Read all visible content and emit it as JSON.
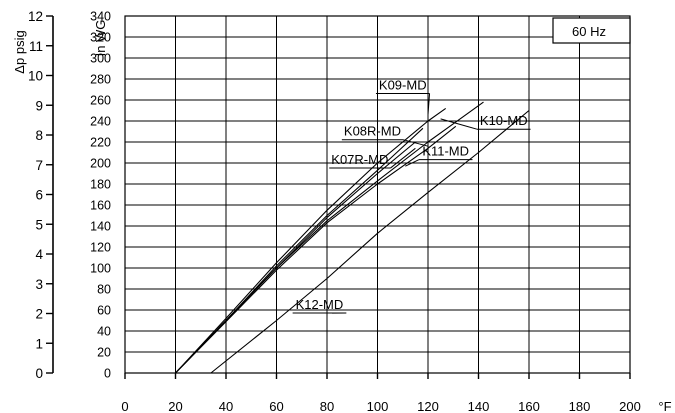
{
  "chart_data": {
    "type": "line",
    "badge": "60 Hz",
    "x_unit": "°F",
    "xlim": [
      0,
      200
    ],
    "x_ticks": [
      0,
      20,
      40,
      60,
      80,
      100,
      120,
      140,
      160,
      180,
      200
    ],
    "left_axis": {
      "label": "Δp psig",
      "range": [
        0,
        12
      ],
      "ticks": [
        0,
        1,
        2,
        3,
        4,
        5,
        6,
        7,
        8,
        9,
        10,
        11,
        12
      ]
    },
    "right_axis": {
      "label": "In WG",
      "range": [
        0,
        340
      ],
      "ticks": [
        0,
        20,
        40,
        60,
        80,
        100,
        120,
        140,
        160,
        180,
        200,
        220,
        240,
        260,
        280,
        300,
        320,
        340
      ]
    },
    "grid": true,
    "series": [
      {
        "name": "K09-MD",
        "points": [
          [
            20,
            0
          ],
          [
            40,
            52
          ],
          [
            60,
            105
          ],
          [
            80,
            155
          ],
          [
            100,
            200
          ],
          [
            120,
            240
          ],
          [
            127,
            252
          ]
        ]
      },
      {
        "name": "K08R-MD",
        "points": [
          [
            20,
            0
          ],
          [
            40,
            50
          ],
          [
            60,
            102
          ],
          [
            80,
            150
          ],
          [
            100,
            193
          ],
          [
            118,
            233
          ]
        ]
      },
      {
        "name": "K07R-MD",
        "points": [
          [
            20,
            0
          ],
          [
            40,
            50
          ],
          [
            60,
            100
          ],
          [
            80,
            148
          ],
          [
            100,
            190
          ],
          [
            115,
            220
          ]
        ]
      },
      {
        "name": "K10-MD",
        "points": [
          [
            20,
            0
          ],
          [
            40,
            50
          ],
          [
            60,
            100
          ],
          [
            80,
            145
          ],
          [
            100,
            183
          ],
          [
            120,
            220
          ],
          [
            142,
            258
          ]
        ]
      },
      {
        "name": "K11-MD",
        "points": [
          [
            20,
            0
          ],
          [
            40,
            49
          ],
          [
            60,
            98
          ],
          [
            80,
            143
          ],
          [
            100,
            180
          ],
          [
            120,
            214
          ],
          [
            131,
            235
          ]
        ]
      },
      {
        "name": "K12-MD",
        "points": [
          [
            34,
            0
          ],
          [
            60,
            50
          ],
          [
            80,
            90
          ],
          [
            100,
            133
          ],
          [
            120,
            172
          ],
          [
            140,
            210
          ],
          [
            160,
            250
          ]
        ]
      }
    ],
    "labels": [
      {
        "series": "K09-MD",
        "text": "K09-MD",
        "x": 110,
        "y": 270,
        "lead_to": [
          120,
          246
        ]
      },
      {
        "series": "K08R-MD",
        "text": "K08R-MD",
        "x": 98,
        "y": 226,
        "lead_to": [
          120,
          216
        ]
      },
      {
        "series": "K07R-MD",
        "text": "K07R-MD",
        "x": 93,
        "y": 199,
        "lead_to": [
          115,
          214
        ]
      },
      {
        "series": "K10-MD",
        "text": "K10-MD",
        "x": 150,
        "y": 236,
        "lead_to": [
          125,
          242
        ]
      },
      {
        "series": "K11-MD",
        "text": "K11-MD",
        "x": 127,
        "y": 207,
        "lead_to": [
          111,
          197
        ]
      },
      {
        "series": "K12-MD",
        "text": "K12-MD",
        "x": 77,
        "y": 61,
        "lead_to": [
          82,
          57
        ]
      }
    ]
  }
}
